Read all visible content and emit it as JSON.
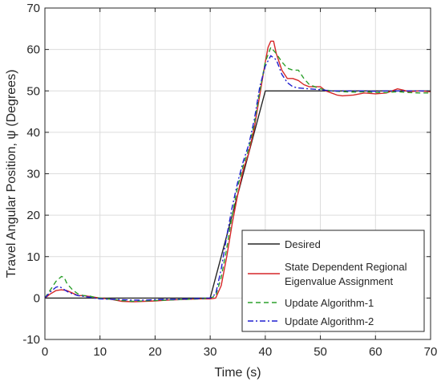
{
  "chart_data": {
    "type": "line",
    "title": "",
    "xlabel": "Time (s)",
    "ylabel": "Travel Angular Position, ψ (Degrees)",
    "xlim": [
      0,
      70
    ],
    "ylim": [
      -10,
      70
    ],
    "xticks": [
      0,
      10,
      20,
      30,
      40,
      50,
      60,
      70
    ],
    "yticks": [
      -10,
      0,
      10,
      20,
      30,
      40,
      50,
      60,
      70
    ],
    "grid": true,
    "legend_position": "bottom-right",
    "series": [
      {
        "name": "Desired",
        "color": "#262626",
        "dash": "solid",
        "points": [
          [
            0,
            0
          ],
          [
            30,
            0
          ],
          [
            40,
            50
          ],
          [
            70,
            50
          ]
        ]
      },
      {
        "name": "State Dependent Regional Eigenvalue Assignment",
        "legend_lines": [
          "State Dependent Regional",
          "Eigenvalue Assignment"
        ],
        "color": "#d62728",
        "dash": "solid",
        "points": [
          [
            0,
            0
          ],
          [
            1,
            1
          ],
          [
            2,
            1.8
          ],
          [
            3,
            2
          ],
          [
            4,
            1.8
          ],
          [
            5,
            1.2
          ],
          [
            6,
            0.6
          ],
          [
            7,
            0.6
          ],
          [
            8,
            0.4
          ],
          [
            9,
            0.2
          ],
          [
            10,
            0
          ],
          [
            12,
            -0.3
          ],
          [
            14,
            -0.8
          ],
          [
            16,
            -0.9
          ],
          [
            18,
            -0.8
          ],
          [
            20,
            -0.7
          ],
          [
            22,
            -0.5
          ],
          [
            24,
            -0.4
          ],
          [
            26,
            -0.3
          ],
          [
            28,
            -0.2
          ],
          [
            30,
            -0.2
          ],
          [
            31,
            0
          ],
          [
            32,
            3
          ],
          [
            33,
            10
          ],
          [
            34,
            18
          ],
          [
            35,
            25
          ],
          [
            36,
            31
          ],
          [
            37,
            35
          ],
          [
            38,
            41
          ],
          [
            39,
            49
          ],
          [
            40,
            57
          ],
          [
            40.5,
            60.5
          ],
          [
            41,
            62
          ],
          [
            41.5,
            62
          ],
          [
            42,
            59
          ],
          [
            43,
            55
          ],
          [
            44,
            53
          ],
          [
            45,
            53
          ],
          [
            46,
            52.5
          ],
          [
            47,
            51.5
          ],
          [
            48,
            51
          ],
          [
            49,
            51
          ],
          [
            50,
            51
          ],
          [
            51,
            50
          ],
          [
            52,
            49.5
          ],
          [
            53,
            49
          ],
          [
            54,
            48.8
          ],
          [
            56,
            49
          ],
          [
            58,
            49.5
          ],
          [
            60,
            49.3
          ],
          [
            62,
            49.5
          ],
          [
            64,
            50.5
          ],
          [
            65,
            50.2
          ],
          [
            66,
            49.8
          ],
          [
            68,
            50
          ],
          [
            70,
            49.8
          ]
        ]
      },
      {
        "name": "Update Algorithm-1",
        "color": "#2ca02c",
        "dash": "dashed",
        "points": [
          [
            0,
            0
          ],
          [
            1,
            2
          ],
          [
            2,
            4
          ],
          [
            3,
            5.2
          ],
          [
            3.5,
            5
          ],
          [
            4,
            3.5
          ],
          [
            5,
            2
          ],
          [
            6,
            1
          ],
          [
            7,
            0.6
          ],
          [
            8,
            0.5
          ],
          [
            9,
            0.2
          ],
          [
            10,
            0
          ],
          [
            12,
            -0.3
          ],
          [
            14,
            -0.6
          ],
          [
            16,
            -0.8
          ],
          [
            18,
            -0.7
          ],
          [
            20,
            -0.6
          ],
          [
            22,
            -0.5
          ],
          [
            24,
            -0.4
          ],
          [
            26,
            -0.3
          ],
          [
            28,
            -0.2
          ],
          [
            30,
            0
          ],
          [
            31,
            0.5
          ],
          [
            32,
            5
          ],
          [
            33,
            12
          ],
          [
            34,
            20
          ],
          [
            35,
            27
          ],
          [
            36,
            32
          ],
          [
            37,
            36
          ],
          [
            38,
            42
          ],
          [
            39,
            50
          ],
          [
            40,
            57
          ],
          [
            41,
            60.5
          ],
          [
            42,
            59
          ],
          [
            43,
            57
          ],
          [
            44,
            55.5
          ],
          [
            45,
            55
          ],
          [
            46,
            55
          ],
          [
            47,
            53
          ],
          [
            48,
            51.5
          ],
          [
            50,
            50.5
          ],
          [
            52,
            50
          ],
          [
            54,
            49.8
          ],
          [
            56,
            49.7
          ],
          [
            58,
            49.8
          ],
          [
            60,
            49.6
          ],
          [
            62,
            49.6
          ],
          [
            64,
            49.8
          ],
          [
            66,
            49.6
          ],
          [
            68,
            49.5
          ],
          [
            70,
            49.5
          ]
        ]
      },
      {
        "name": "Update Algorithm-2",
        "color": "#1f1fd0",
        "dash": "dashdot",
        "points": [
          [
            0,
            0
          ],
          [
            1,
            1.5
          ],
          [
            2,
            2.6
          ],
          [
            2.5,
            2.8
          ],
          [
            3,
            2.5
          ],
          [
            4,
            1.6
          ],
          [
            5,
            1
          ],
          [
            6,
            0.6
          ],
          [
            7,
            0.4
          ],
          [
            8,
            0.2
          ],
          [
            9,
            0
          ],
          [
            10,
            -0.2
          ],
          [
            12,
            -0.3
          ],
          [
            14,
            -0.4
          ],
          [
            16,
            -0.5
          ],
          [
            18,
            -0.5
          ],
          [
            20,
            -0.4
          ],
          [
            22,
            -0.3
          ],
          [
            24,
            -0.3
          ],
          [
            26,
            -0.2
          ],
          [
            28,
            -0.1
          ],
          [
            30,
            0
          ],
          [
            31,
            1
          ],
          [
            32,
            7
          ],
          [
            33,
            15
          ],
          [
            34,
            22
          ],
          [
            35,
            28
          ],
          [
            36,
            33
          ],
          [
            37,
            37
          ],
          [
            38,
            43
          ],
          [
            39,
            51
          ],
          [
            40,
            56
          ],
          [
            41,
            58.5
          ],
          [
            42,
            57.5
          ],
          [
            43,
            54
          ],
          [
            44,
            52
          ],
          [
            45,
            51
          ],
          [
            46,
            50.7
          ],
          [
            48,
            50.5
          ],
          [
            50,
            50.3
          ],
          [
            52,
            50
          ],
          [
            54,
            50
          ],
          [
            56,
            50
          ],
          [
            58,
            50
          ],
          [
            60,
            49.9
          ],
          [
            62,
            50
          ],
          [
            64,
            50
          ],
          [
            66,
            50
          ],
          [
            68,
            50
          ],
          [
            70,
            50
          ]
        ]
      }
    ]
  }
}
